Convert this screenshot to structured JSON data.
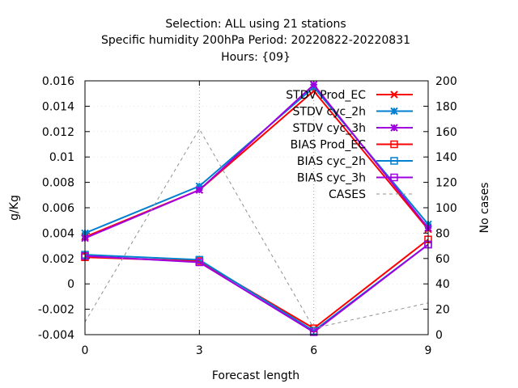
{
  "chart_data": {
    "type": "line",
    "title_lines": [
      "Selection: ALL using    21 stations",
      "Specific humidity 200hPa   Period: 20220822-20220831",
      "Hours: {09}"
    ],
    "xlabel": "Forecast length",
    "ylabel": "g/Kg",
    "y2label": "No cases",
    "x": [
      0,
      3,
      6,
      9
    ],
    "xlim": [
      0,
      9
    ],
    "ylim": [
      -0.004,
      0.016
    ],
    "y2lim": [
      0,
      200
    ],
    "x_ticks": [
      "0",
      "3",
      "6",
      "9"
    ],
    "y_ticks": [
      "-0.004",
      "-0.002",
      "0",
      "0.002",
      "0.004",
      "0.006",
      "0.008",
      "0.01",
      "0.012",
      "0.014",
      "0.016"
    ],
    "y2_ticks": [
      "0",
      "20",
      "40",
      "60",
      "80",
      "100",
      "120",
      "140",
      "160",
      "180",
      "200"
    ],
    "grid": true,
    "legend_position": "top-right",
    "series": [
      {
        "name": "STDV Prod_EC",
        "values": [
          0.0037,
          0.0074,
          0.0152,
          0.0043
        ],
        "color": "#ff0000",
        "marker": "x"
      },
      {
        "name": "STDV cyc_2h",
        "values": [
          0.004,
          0.0077,
          0.0155,
          0.0047
        ],
        "color": "#0080d0",
        "marker": "star"
      },
      {
        "name": "STDV cyc_3h",
        "values": [
          0.0036,
          0.0074,
          0.0157,
          0.0044
        ],
        "color": "#a000e0",
        "marker": "star"
      },
      {
        "name": "BIAS Prod_EC",
        "values": [
          0.0021,
          0.0018,
          -0.0035,
          0.0035
        ],
        "color": "#ff0000",
        "marker": "square"
      },
      {
        "name": "BIAS cyc_2h",
        "values": [
          0.0023,
          0.0019,
          -0.0037,
          0.0031
        ],
        "color": "#0080d0",
        "marker": "square"
      },
      {
        "name": "BIAS cyc_3h",
        "values": [
          0.0022,
          0.0017,
          -0.0038,
          0.0031
        ],
        "color": "#a000e0",
        "marker": "square"
      },
      {
        "name": "CASES",
        "values": [
          10,
          162,
          5,
          25
        ],
        "axis": "y2",
        "color": "#909090",
        "dash": true
      }
    ]
  }
}
